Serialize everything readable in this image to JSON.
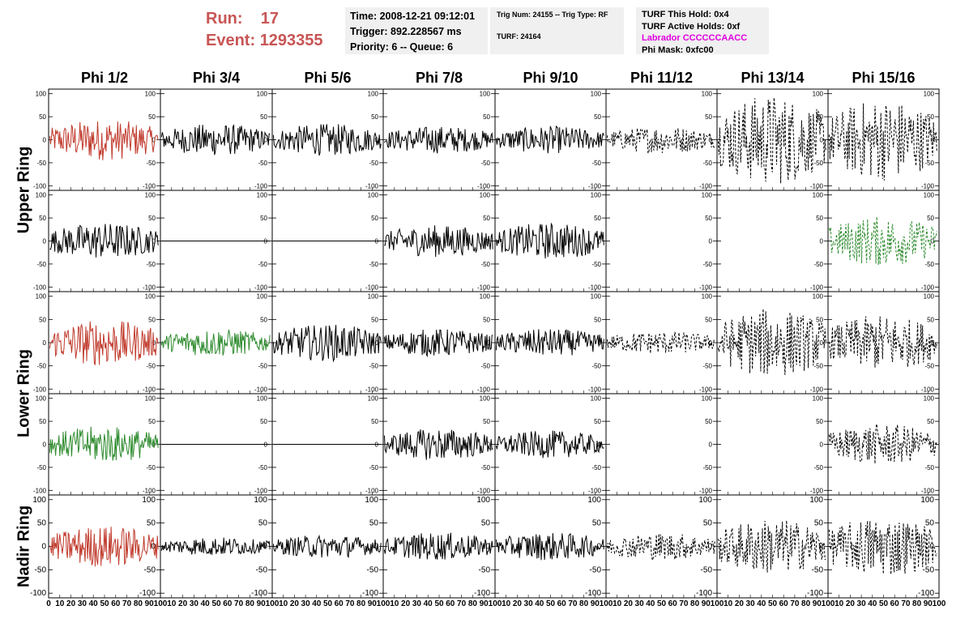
{
  "header": {
    "run_label": "Run:",
    "run_value": "17",
    "event_label": "Event:",
    "event_value": "1293355",
    "time": "Time: 2008-12-21 09:12:01",
    "trigger": "Trigger: 892.228567 ms",
    "priority": "Priority: 6 -- Queue: 6",
    "trig_num": "Trig Num: 24155 -- Trig Type: RF",
    "turf": "TURF: 24164",
    "turf_hold": "TURF This Hold: 0x4",
    "turf_active": "TURF Active Holds: 0xf",
    "labrador": "Labrador CCCCCCAACC",
    "phi_mask": "Phi Mask: 0xfc00"
  },
  "colors": {
    "red": "#c0392b",
    "green": "#2e8b2e",
    "black": "#000000",
    "run_text": "#c85555",
    "labrador": "#e000e0"
  },
  "chart_data": {
    "type": "line",
    "columns": [
      "Phi 1/2",
      "Phi 3/4",
      "Phi 5/6",
      "Phi 7/8",
      "Phi 9/10",
      "Phi 11/12",
      "Phi 13/14",
      "Phi 15/16"
    ],
    "ring_labels": [
      "Upper Ring",
      "Lower Ring",
      "Nadir Ring"
    ],
    "y_ticks": [
      100,
      50,
      0,
      -50,
      -100
    ],
    "x_tick_labels_left": [
      "0",
      "10",
      "20",
      "30",
      "40",
      "50",
      "60",
      "70",
      "80",
      "90",
      "100"
    ],
    "x_tick_labels_inner": [
      "10",
      "20",
      "30",
      "40",
      "50",
      "60",
      "70",
      "80",
      "90",
      "100"
    ],
    "xlim": [
      0,
      100
    ],
    "ylim": [
      -110,
      110
    ],
    "rows": [
      {
        "ring": "Upper Ring",
        "cells": [
          {
            "amp": 45,
            "color": "red",
            "dash": false
          },
          {
            "amp": 35,
            "color": "black",
            "dash": false
          },
          {
            "amp": 35,
            "color": "black",
            "dash": false
          },
          {
            "amp": 30,
            "color": "black",
            "dash": false
          },
          {
            "amp": 30,
            "color": "black",
            "dash": false
          },
          {
            "amp": 30,
            "color": "black",
            "dash": true
          },
          {
            "amp": 100,
            "color": "black",
            "dash": true
          },
          {
            "amp": 90,
            "color": "black",
            "dash": true
          }
        ]
      },
      {
        "ring": "Upper Ring",
        "cells": [
          {
            "amp": 40,
            "color": "black",
            "dash": false
          },
          {
            "amp": 0,
            "color": "black",
            "dash": false
          },
          {
            "amp": 0,
            "color": "black",
            "dash": false
          },
          {
            "amp": 35,
            "color": "black",
            "dash": false
          },
          {
            "amp": 40,
            "color": "black",
            "dash": false
          },
          {
            "amp": 0,
            "color": "black",
            "dash": false,
            "blank": true
          },
          {
            "amp": 0,
            "color": "black",
            "dash": false,
            "blank": true
          },
          {
            "amp": 55,
            "color": "green",
            "dash": true
          }
        ]
      },
      {
        "ring": "Lower Ring",
        "cells": [
          {
            "amp": 50,
            "color": "red",
            "dash": false
          },
          {
            "amp": 30,
            "color": "green",
            "dash": false
          },
          {
            "amp": 40,
            "color": "black",
            "dash": false
          },
          {
            "amp": 30,
            "color": "black",
            "dash": false
          },
          {
            "amp": 30,
            "color": "black",
            "dash": false
          },
          {
            "amp": 25,
            "color": "black",
            "dash": true
          },
          {
            "amp": 75,
            "color": "black",
            "dash": true
          },
          {
            "amp": 60,
            "color": "black",
            "dash": true
          }
        ]
      },
      {
        "ring": "Lower Ring",
        "cells": [
          {
            "amp": 40,
            "color": "green",
            "dash": false
          },
          {
            "amp": 0,
            "color": "black",
            "dash": false
          },
          {
            "amp": 0,
            "color": "black",
            "dash": false
          },
          {
            "amp": 35,
            "color": "black",
            "dash": false
          },
          {
            "amp": 30,
            "color": "black",
            "dash": false
          },
          {
            "amp": 0,
            "color": "black",
            "dash": false,
            "blank": true
          },
          {
            "amp": 0,
            "color": "black",
            "dash": false,
            "blank": true
          },
          {
            "amp": 45,
            "color": "black",
            "dash": true
          }
        ]
      },
      {
        "ring": "Nadir Ring",
        "cells": [
          {
            "amp": 45,
            "color": "red",
            "dash": false
          },
          {
            "amp": 20,
            "color": "black",
            "dash": false
          },
          {
            "amp": 25,
            "color": "black",
            "dash": false
          },
          {
            "amp": 30,
            "color": "black",
            "dash": false
          },
          {
            "amp": 30,
            "color": "black",
            "dash": false
          },
          {
            "amp": 30,
            "color": "black",
            "dash": true
          },
          {
            "amp": 60,
            "color": "black",
            "dash": true
          },
          {
            "amp": 65,
            "color": "black",
            "dash": true
          }
        ]
      }
    ]
  }
}
